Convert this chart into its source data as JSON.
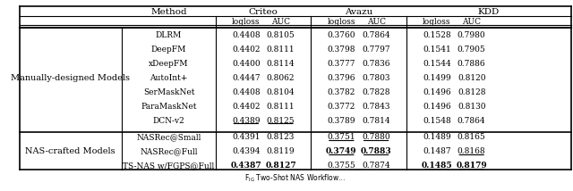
{
  "col_groups": [
    "Criteo",
    "Avazu",
    "KDD"
  ],
  "sub_cols": [
    "logloss",
    "AUC"
  ],
  "header_row1": [
    "",
    "Method",
    "Criteo",
    "",
    "Avazu",
    "",
    "KDD",
    ""
  ],
  "header_row2": [
    "",
    "",
    "logloss",
    "AUC",
    "logloss",
    "AUC",
    "logloss",
    "AUC"
  ],
  "row_group1_label": "Manually-designed Models",
  "row_group2_label": "NAS-crafted Models",
  "rows": [
    [
      "DLRM",
      "0.4408",
      "0.8105",
      "0.3760",
      "0.7864",
      "0.1528",
      "0.7980",
      false,
      false,
      false,
      false,
      false,
      false
    ],
    [
      "DeepFM",
      "0.4402",
      "0.8111",
      "0.3798",
      "0.7797",
      "0.1541",
      "0.7905",
      false,
      false,
      false,
      false,
      false,
      false
    ],
    [
      "xDeepFM",
      "0.4400",
      "0.8114",
      "0.3777",
      "0.7836",
      "0.1544",
      "0.7886",
      false,
      false,
      false,
      false,
      false,
      false
    ],
    [
      "AutoInt+",
      "0.4447",
      "0.8062",
      "0.3796",
      "0.7803",
      "0.1499",
      "0.8120",
      false,
      false,
      false,
      false,
      false,
      false
    ],
    [
      "SerMaskNet",
      "0.4408",
      "0.8104",
      "0.3782",
      "0.7828",
      "0.1496",
      "0.8128",
      false,
      false,
      false,
      false,
      false,
      false
    ],
    [
      "ParaMaskNet",
      "0.4402",
      "0.8111",
      "0.3772",
      "0.7843",
      "0.1496",
      "0.8130",
      false,
      false,
      false,
      false,
      false,
      false
    ],
    [
      "DCN-v2",
      "0.4389",
      "0.8125",
      "0.3789",
      "0.7814",
      "0.1548",
      "0.7864",
      true,
      true,
      false,
      false,
      false,
      false
    ]
  ],
  "rows2": [
    [
      "NASRec@Small",
      "0.4391",
      "0.8123",
      "0.3751",
      "0.7880",
      "0.1489",
      "0.8165",
      false,
      false,
      true,
      true,
      false,
      false
    ],
    [
      "NASRec@Full",
      "0.4394",
      "0.8119",
      "0.3749",
      "0.7883",
      "0.1487",
      "0.8168",
      false,
      false,
      true,
      true,
      false,
      true
    ],
    [
      "TS-NAS w/FGPS@Full",
      "0.4387",
      "0.8127",
      "0.3755",
      "0.7874",
      "0.1485",
      "0.8179",
      false,
      false,
      false,
      false,
      true,
      true
    ]
  ],
  "bold_cells": {
    "NASRec@Full": [
      2,
      3
    ],
    "TS-NAS w/FGPS@Full": [
      0,
      1,
      6,
      7
    ]
  },
  "underline_cells": {
    "DCN-v2": [
      0,
      1
    ],
    "NASRec@Small": [
      2,
      3
    ],
    "NASRec@Full": [
      2,
      3,
      4
    ],
    "TS-NAS w/FGPS@Full": [
      4,
      5
    ]
  },
  "caption": "Two-Shot NAS Workflow"
}
